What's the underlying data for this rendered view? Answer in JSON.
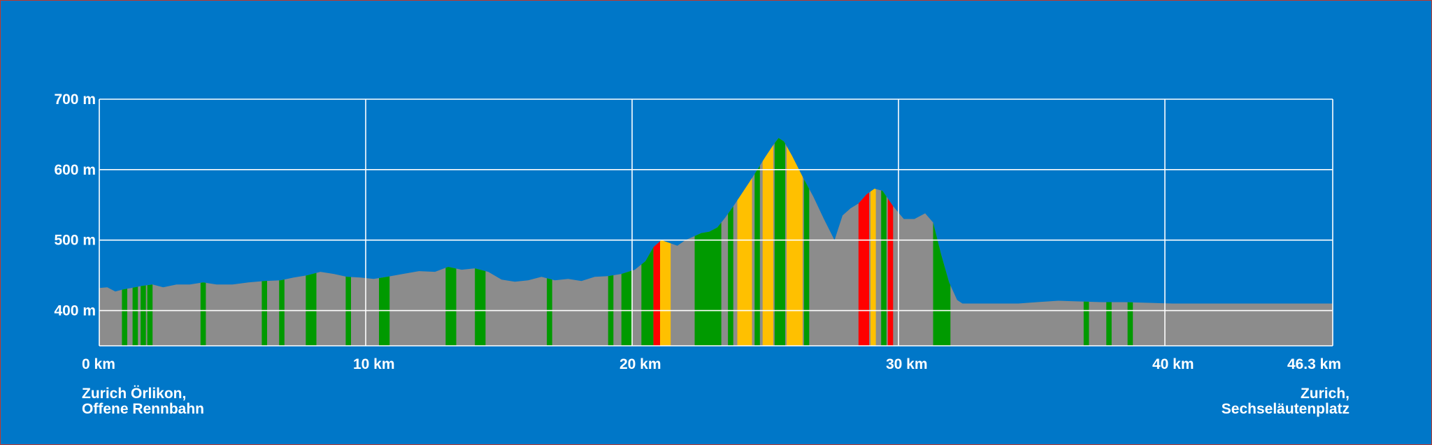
{
  "chart_data": {
    "type": "area",
    "title": "",
    "xlabel": "",
    "ylabel": "",
    "xlim": [
      0,
      46.3
    ],
    "ylim": [
      350,
      700
    ],
    "x_ticks": [
      0,
      10,
      20,
      30,
      40,
      46.3
    ],
    "x_tick_labels": [
      "0 km",
      "10 km",
      "20 km",
      "30 km",
      "40 km",
      "46.3 km"
    ],
    "y_ticks": [
      400,
      500,
      600,
      700
    ],
    "y_tick_labels": [
      "400 m",
      "500 m",
      "600 m",
      "700 m"
    ],
    "grid": true,
    "colors": {
      "background": "#0077c8",
      "profile": "#8c8c8c",
      "grid": "#ffffff",
      "green": "#009a00",
      "yellow": "#ffc000",
      "red": "#ff0000"
    },
    "profile": {
      "x": [
        0,
        0.3,
        0.6,
        0.9,
        1.2,
        1.6,
        2.0,
        2.4,
        2.9,
        3.4,
        3.9,
        4.4,
        5.0,
        5.6,
        6.2,
        6.8,
        7.3,
        7.8,
        8.3,
        8.8,
        9.3,
        9.8,
        10.3,
        10.8,
        11.4,
        12.0,
        12.6,
        13.1,
        13.6,
        14.1,
        14.6,
        15.1,
        15.6,
        16.1,
        16.6,
        17.1,
        17.6,
        18.1,
        18.6,
        19.1,
        19.6,
        20.1,
        20.5,
        20.8,
        21.1,
        21.4,
        21.7,
        22.0,
        22.3,
        22.6,
        22.9,
        23.2,
        23.5,
        23.8,
        24.1,
        24.4,
        24.7,
        25.0,
        25.3,
        25.5,
        25.7,
        26.0,
        26.4,
        26.8,
        27.2,
        27.6,
        27.9,
        28.2,
        28.5,
        28.8,
        29.1,
        29.4,
        29.8,
        30.2,
        30.6,
        31.0,
        31.3,
        31.6,
        31.9,
        32.2,
        32.4,
        32.7,
        33.2,
        33.8,
        34.5,
        35.2,
        36.0,
        36.8,
        37.6,
        38.5,
        39.4,
        40.3,
        41.2,
        42.1,
        43.0,
        43.9,
        44.8,
        45.6,
        46.3
      ],
      "y": [
        432,
        433,
        427,
        430,
        432,
        435,
        437,
        433,
        437,
        437,
        440,
        437,
        437,
        440,
        442,
        443,
        447,
        450,
        455,
        452,
        448,
        447,
        445,
        448,
        452,
        456,
        455,
        462,
        458,
        460,
        455,
        444,
        441,
        443,
        448,
        443,
        445,
        442,
        448,
        449,
        452,
        458,
        470,
        490,
        500,
        496,
        492,
        500,
        505,
        510,
        512,
        518,
        532,
        548,
        565,
        582,
        600,
        618,
        635,
        645,
        640,
        620,
        590,
        562,
        530,
        500,
        535,
        545,
        552,
        565,
        573,
        570,
        548,
        530,
        530,
        538,
        525,
        480,
        440,
        415,
        410,
        410,
        410,
        410,
        410,
        412,
        414,
        413,
        412,
        412,
        411,
        410,
        410,
        410,
        410,
        410,
        410,
        410,
        410
      ]
    },
    "segments": [
      {
        "from": 0.85,
        "to": 1.05,
        "color": "green"
      },
      {
        "from": 1.25,
        "to": 1.45,
        "color": "green"
      },
      {
        "from": 1.55,
        "to": 1.75,
        "color": "green"
      },
      {
        "from": 1.8,
        "to": 2.0,
        "color": "green"
      },
      {
        "from": 3.8,
        "to": 4.0,
        "color": "green"
      },
      {
        "from": 6.1,
        "to": 6.3,
        "color": "green"
      },
      {
        "from": 6.75,
        "to": 6.95,
        "color": "green"
      },
      {
        "from": 7.75,
        "to": 8.15,
        "color": "green"
      },
      {
        "from": 9.25,
        "to": 9.45,
        "color": "green"
      },
      {
        "from": 10.5,
        "to": 10.9,
        "color": "green"
      },
      {
        "from": 13.0,
        "to": 13.4,
        "color": "green"
      },
      {
        "from": 14.1,
        "to": 14.5,
        "color": "green"
      },
      {
        "from": 16.8,
        "to": 17.0,
        "color": "green"
      },
      {
        "from": 19.1,
        "to": 19.3,
        "color": "green"
      },
      {
        "from": 19.6,
        "to": 20.0,
        "color": "green"
      },
      {
        "from": 20.35,
        "to": 20.8,
        "color": "green"
      },
      {
        "from": 20.8,
        "to": 21.05,
        "color": "red"
      },
      {
        "from": 21.05,
        "to": 21.45,
        "color": "yellow"
      },
      {
        "from": 22.35,
        "to": 23.35,
        "color": "green"
      },
      {
        "from": 23.6,
        "to": 23.8,
        "color": "green"
      },
      {
        "from": 23.95,
        "to": 24.5,
        "color": "yellow"
      },
      {
        "from": 24.6,
        "to": 24.8,
        "color": "green"
      },
      {
        "from": 24.9,
        "to": 25.3,
        "color": "yellow"
      },
      {
        "from": 25.35,
        "to": 25.75,
        "color": "green"
      },
      {
        "from": 25.8,
        "to": 26.4,
        "color": "yellow"
      },
      {
        "from": 26.45,
        "to": 26.65,
        "color": "green"
      },
      {
        "from": 28.5,
        "to": 28.9,
        "color": "red"
      },
      {
        "from": 28.95,
        "to": 29.15,
        "color": "yellow"
      },
      {
        "from": 29.35,
        "to": 29.55,
        "color": "green"
      },
      {
        "from": 29.6,
        "to": 29.8,
        "color": "red"
      },
      {
        "from": 31.3,
        "to": 31.95,
        "color": "green"
      },
      {
        "from": 36.95,
        "to": 37.15,
        "color": "green"
      },
      {
        "from": 37.8,
        "to": 38.0,
        "color": "green"
      },
      {
        "from": 38.6,
        "to": 38.8,
        "color": "green"
      }
    ]
  },
  "locations": {
    "start": {
      "line1": "Zurich Örlikon,",
      "line2": "Offene Rennbahn"
    },
    "end": {
      "line1": "Zurich,",
      "line2": "Sechseläutenplatz"
    }
  }
}
